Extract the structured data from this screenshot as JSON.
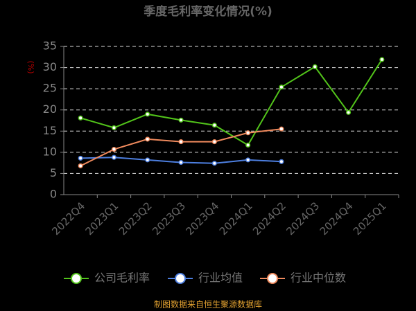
{
  "chart_data": {
    "type": "line",
    "title": "季度毛利率变化情况(%)",
    "y_label": "(%)",
    "categories": [
      "2022Q4",
      "2023Q1",
      "2023Q2",
      "2023Q3",
      "2023Q4",
      "2024Q1",
      "2024Q2",
      "2024Q3",
      "2024Q4",
      "2025Q1"
    ],
    "series": [
      {
        "name": "公司毛利率",
        "color": "#52c41a",
        "values": [
          18.1,
          15.8,
          19.0,
          17.6,
          16.4,
          11.7,
          25.4,
          30.2,
          19.4,
          31.9
        ]
      },
      {
        "name": "行业均值",
        "color": "#4d7fe0",
        "values": [
          8.6,
          8.8,
          8.2,
          7.6,
          7.4,
          8.2,
          7.8,
          null,
          null,
          null
        ]
      },
      {
        "name": "行业中位数",
        "color": "#f08a5d",
        "values": [
          6.8,
          10.7,
          13.1,
          12.5,
          12.5,
          14.6,
          15.5,
          null,
          null,
          null
        ]
      }
    ],
    "ylim": [
      0,
      35
    ],
    "yticks": [
      0,
      5,
      10,
      15,
      20,
      25,
      30,
      35
    ],
    "grid": true,
    "source": "制图数据来自恒生聚源数据库"
  }
}
